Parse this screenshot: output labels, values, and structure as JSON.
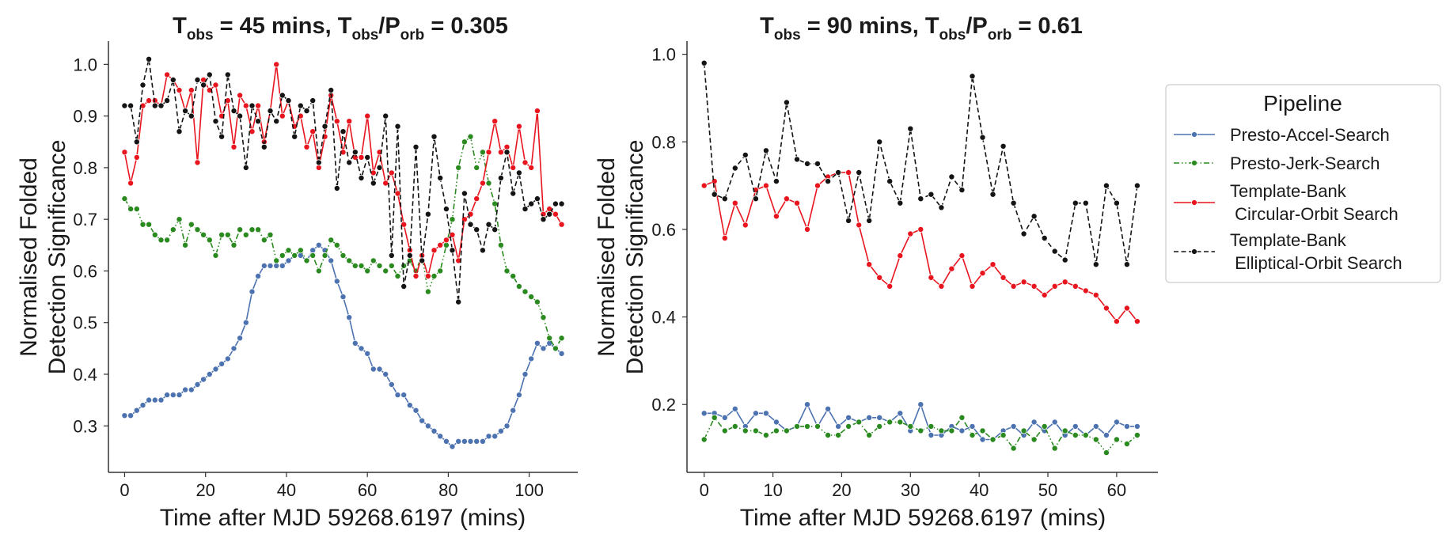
{
  "chart_data": [
    {
      "type": "line",
      "title": "T_obs = 45 mins, T_obs/P_orb = 0.305",
      "title_parts": {
        "T": "T",
        "obs_sub": "obs",
        "mid": " = 45 mins, T",
        "obs_sub2": "obs",
        "slash": "/P",
        "orb_sub": "orb",
        "tail": " = 0.305"
      },
      "xlabel": "Time after MJD 59268.6197 (mins)",
      "ylabel": [
        "Normalised Folded",
        "Detection Significance"
      ],
      "xlim": [
        -4,
        112
      ],
      "ylim": [
        0.21,
        1.045
      ],
      "xticks": [
        "0",
        "20",
        "40",
        "60",
        "80",
        "100"
      ],
      "yticks": [
        "0.3",
        "0.4",
        "0.5",
        "0.6",
        "0.7",
        "0.8",
        "0.9",
        "1.0"
      ],
      "x": [
        0,
        1.5,
        3,
        4.5,
        6,
        7.5,
        9,
        10.5,
        12,
        13.5,
        15,
        16.5,
        18,
        19.5,
        21,
        22.5,
        24,
        25.5,
        27,
        28.5,
        30,
        31.5,
        33,
        34.5,
        36,
        37.5,
        39,
        40.5,
        42,
        43.5,
        45,
        46.5,
        48,
        49.5,
        51,
        52.5,
        54,
        55.5,
        57,
        58.5,
        60,
        61.5,
        63,
        64.5,
        66,
        67.5,
        69,
        70.5,
        72,
        73.5,
        75,
        76.5,
        78,
        79.5,
        81,
        82.5,
        84,
        85.5,
        87,
        88.5,
        90,
        91.5,
        93,
        94.5,
        96,
        97.5,
        99,
        100.5,
        102,
        103.5,
        105,
        106.5,
        108
      ],
      "series": [
        {
          "name": "Presto-Accel-Search",
          "values": [
            0.32,
            0.32,
            0.33,
            0.34,
            0.35,
            0.35,
            0.35,
            0.36,
            0.36,
            0.36,
            0.37,
            0.37,
            0.38,
            0.39,
            0.4,
            0.41,
            0.42,
            0.43,
            0.45,
            0.47,
            0.5,
            0.56,
            0.59,
            0.61,
            0.61,
            0.61,
            0.61,
            0.62,
            0.63,
            0.63,
            0.62,
            0.64,
            0.65,
            0.64,
            0.62,
            0.58,
            0.55,
            0.51,
            0.46,
            0.45,
            0.44,
            0.41,
            0.41,
            0.4,
            0.38,
            0.36,
            0.36,
            0.34,
            0.33,
            0.31,
            0.3,
            0.29,
            0.28,
            0.27,
            0.26,
            0.27,
            0.27,
            0.27,
            0.27,
            0.27,
            0.28,
            0.28,
            0.29,
            0.3,
            0.33,
            0.36,
            0.4,
            0.43,
            0.46,
            0.45,
            0.46,
            0.45,
            0.44
          ]
        },
        {
          "name": "Presto-Jerk-Search",
          "values": [
            0.74,
            0.72,
            0.72,
            0.69,
            0.69,
            0.67,
            0.66,
            0.66,
            0.68,
            0.7,
            0.65,
            0.69,
            0.68,
            0.67,
            0.66,
            0.63,
            0.67,
            0.67,
            0.65,
            0.68,
            0.67,
            0.68,
            0.68,
            0.66,
            0.67,
            0.62,
            0.63,
            0.64,
            0.63,
            0.64,
            0.62,
            0.63,
            0.6,
            0.63,
            0.66,
            0.65,
            0.63,
            0.62,
            0.61,
            0.61,
            0.6,
            0.62,
            0.61,
            0.6,
            0.61,
            0.59,
            0.61,
            0.62,
            0.6,
            0.63,
            0.56,
            0.59,
            0.6,
            0.65,
            0.7,
            0.8,
            0.85,
            0.86,
            0.8,
            0.83,
            0.77,
            0.73,
            0.65,
            0.6,
            0.59,
            0.57,
            0.56,
            0.55,
            0.54,
            0.51,
            0.47,
            0.45,
            0.47
          ]
        },
        {
          "name": "Template-Bank\n Circular-Orbit Search",
          "values": [
            0.83,
            0.77,
            0.82,
            0.92,
            0.93,
            0.93,
            0.92,
            0.98,
            0.97,
            0.95,
            0.91,
            0.95,
            0.81,
            0.97,
            0.95,
            0.96,
            0.9,
            0.93,
            0.84,
            0.94,
            0.92,
            0.87,
            0.92,
            0.85,
            0.91,
            1.0,
            0.9,
            0.93,
            0.88,
            0.9,
            0.84,
            0.87,
            0.8,
            0.86,
            0.94,
            0.89,
            0.83,
            0.89,
            0.82,
            0.82,
            0.9,
            0.79,
            0.83,
            0.77,
            0.79,
            0.75,
            0.69,
            0.64,
            0.59,
            0.63,
            0.59,
            0.64,
            0.65,
            0.66,
            0.67,
            0.62,
            0.7,
            0.71,
            0.74,
            0.77,
            0.83,
            0.89,
            0.83,
            0.84,
            0.8,
            0.88,
            0.81,
            0.8,
            0.91,
            0.71,
            0.72,
            0.71,
            0.69
          ]
        },
        {
          "name": "Template-Bank\n Elliptical-Orbit Search",
          "values": [
            0.92,
            0.92,
            0.85,
            0.96,
            1.01,
            0.92,
            0.92,
            0.93,
            0.97,
            0.87,
            0.91,
            0.9,
            0.97,
            0.96,
            0.98,
            0.89,
            0.86,
            0.98,
            0.91,
            0.9,
            0.8,
            0.92,
            0.89,
            0.84,
            0.91,
            0.89,
            0.94,
            0.93,
            0.86,
            0.92,
            0.91,
            0.93,
            0.81,
            0.88,
            0.95,
            0.76,
            0.87,
            0.81,
            0.83,
            0.78,
            0.82,
            0.77,
            0.8,
            0.9,
            0.63,
            0.88,
            0.57,
            0.63,
            0.84,
            0.62,
            0.71,
            0.86,
            0.78,
            0.72,
            0.64,
            0.54,
            0.75,
            0.69,
            0.68,
            0.64,
            0.69,
            0.68,
            0.78,
            0.83,
            0.75,
            0.79,
            0.72,
            0.73,
            0.74,
            0.7,
            0.71,
            0.73,
            0.73
          ]
        }
      ]
    },
    {
      "type": "line",
      "title": "T_obs = 90 mins, T_obs/P_orb = 0.61",
      "title_parts": {
        "T": "T",
        "obs_sub": "obs",
        "mid": " = 90 mins, T",
        "obs_sub2": "obs",
        "slash": "/P",
        "orb_sub": "orb",
        "tail": " = 0.61"
      },
      "xlabel": "Time after MJD 59268.6197 (mins)",
      "ylabel": [
        "Normalised Folded",
        "Detection Significance"
      ],
      "xlim": [
        -2.5,
        66
      ],
      "ylim": [
        0.045,
        1.03
      ],
      "xticks": [
        "0",
        "10",
        "20",
        "30",
        "40",
        "50",
        "60"
      ],
      "yticks": [
        "0.2",
        "0.4",
        "0.6",
        "0.8",
        "1.0"
      ],
      "x": [
        0,
        1.5,
        3,
        4.5,
        6,
        7.5,
        9,
        10.5,
        12,
        13.5,
        15,
        16.5,
        18,
        19.5,
        21,
        22.5,
        24,
        25.5,
        27,
        28.5,
        30,
        31.5,
        33,
        34.5,
        36,
        37.5,
        39,
        40.5,
        42,
        43.5,
        45,
        46.5,
        48,
        49.5,
        51,
        52.5,
        54,
        55.5,
        57,
        58.5,
        60,
        61.5,
        63
      ],
      "series": [
        {
          "name": "Presto-Accel-Search",
          "values": [
            0.18,
            0.18,
            0.17,
            0.19,
            0.15,
            0.18,
            0.18,
            0.16,
            0.14,
            0.15,
            0.2,
            0.15,
            0.19,
            0.15,
            0.17,
            0.16,
            0.17,
            0.17,
            0.16,
            0.18,
            0.14,
            0.2,
            0.13,
            0.13,
            0.15,
            0.14,
            0.15,
            0.12,
            0.12,
            0.14,
            0.15,
            0.13,
            0.16,
            0.14,
            0.16,
            0.13,
            0.15,
            0.13,
            0.15,
            0.13,
            0.16,
            0.15,
            0.15
          ]
        },
        {
          "name": "Presto-Jerk-Search",
          "values": [
            0.12,
            0.17,
            0.14,
            0.15,
            0.14,
            0.14,
            0.13,
            0.14,
            0.14,
            0.15,
            0.15,
            0.15,
            0.13,
            0.13,
            0.15,
            0.16,
            0.13,
            0.15,
            0.16,
            0.16,
            0.15,
            0.14,
            0.15,
            0.14,
            0.14,
            0.17,
            0.13,
            0.14,
            0.12,
            0.13,
            0.1,
            0.14,
            0.12,
            0.15,
            0.1,
            0.14,
            0.13,
            0.13,
            0.12,
            0.09,
            0.12,
            0.11,
            0.13
          ]
        },
        {
          "name": "Template-Bank\n Circular-Orbit Search",
          "values": [
            0.7,
            0.71,
            0.58,
            0.66,
            0.61,
            0.69,
            0.7,
            0.63,
            0.67,
            0.66,
            0.6,
            0.7,
            0.72,
            0.73,
            0.73,
            0.61,
            0.52,
            0.49,
            0.47,
            0.54,
            0.59,
            0.6,
            0.49,
            0.47,
            0.51,
            0.54,
            0.47,
            0.5,
            0.52,
            0.49,
            0.47,
            0.48,
            0.47,
            0.45,
            0.47,
            0.48,
            0.47,
            0.46,
            0.45,
            0.42,
            0.39,
            0.42,
            0.39
          ]
        },
        {
          "name": "Template-Bank\n Elliptical-Orbit Search",
          "values": [
            0.98,
            0.68,
            0.67,
            0.74,
            0.77,
            0.67,
            0.78,
            0.71,
            0.89,
            0.76,
            0.75,
            0.75,
            0.71,
            0.73,
            0.62,
            0.73,
            0.62,
            0.8,
            0.71,
            0.66,
            0.83,
            0.67,
            0.68,
            0.65,
            0.72,
            0.69,
            0.95,
            0.81,
            0.68,
            0.79,
            0.66,
            0.59,
            0.63,
            0.58,
            0.55,
            0.53,
            0.66,
            0.66,
            0.52,
            0.7,
            0.66,
            0.52,
            0.7
          ]
        }
      ]
    }
  ],
  "legend": {
    "title": "Pipeline",
    "entries": [
      {
        "lines": [
          "Presto-Accel-Search"
        ]
      },
      {
        "lines": [
          "Presto-Jerk-Search"
        ]
      },
      {
        "lines": [
          "Template-Bank",
          " Circular-Orbit Search"
        ]
      },
      {
        "lines": [
          "Template-Bank",
          " Elliptical-Orbit Search"
        ]
      }
    ]
  },
  "colors": {
    "accel": "#4c72b0",
    "jerk": "#2a8a1f",
    "circular": "#e8151f",
    "elliptical": "#141414",
    "axis": "#333333"
  }
}
